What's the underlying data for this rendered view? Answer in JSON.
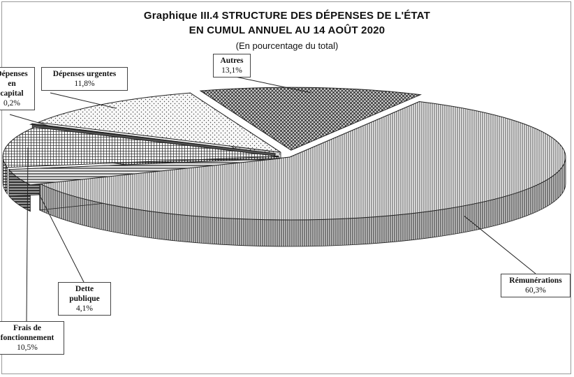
{
  "chart_data": {
    "type": "pie",
    "title_line1": "Graphique III.4  STRUCTURE  DES DÉPENSES DE L'ÉTAT",
    "title_line2": "EN CUMUL ANNUEL AU 14 AOÛT 2020",
    "subtitle": "(En pourcentage du total)",
    "slices": [
      {
        "name": "Rémunérations",
        "value": 60.3,
        "label": "60,3%"
      },
      {
        "name": "Dette publique",
        "value": 4.1,
        "label": "4,1%"
      },
      {
        "name": "Frais de fonctionnement",
        "value": 10.5,
        "label": "10,5%",
        "name_lines": [
          "Frais de",
          "fonctionnement"
        ]
      },
      {
        "name": "Dépenses en capital",
        "value": 0.2,
        "label": "0,2%",
        "name_lines": [
          "Dépenses",
          "en",
          "capital"
        ]
      },
      {
        "name": "Dépenses urgentes",
        "value": 11.8,
        "label": "11,8%"
      },
      {
        "name": "Autres",
        "value": 13.1,
        "label": "13,1%"
      }
    ],
    "style": "3d-exploded",
    "legend": "none"
  }
}
